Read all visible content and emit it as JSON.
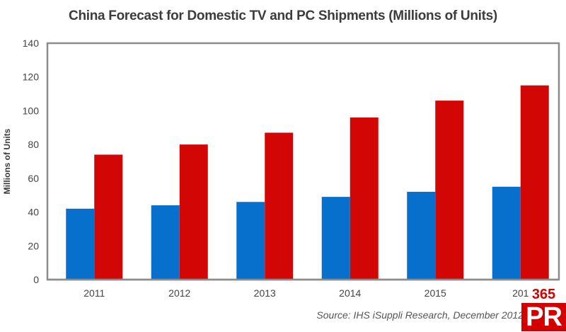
{
  "chart_data": {
    "type": "bar",
    "title": "China Forecast for Domestic TV and PC Shipments (Millions of Units)",
    "xlabel": "",
    "ylabel": "Millions of Units",
    "categories": [
      "2011",
      "2012",
      "2013",
      "2014",
      "2015",
      "201"
    ],
    "series": [
      {
        "name": "Series 1 (blue)",
        "color": "#0670cc",
        "values": [
          42,
          44,
          46,
          49,
          52,
          55
        ]
      },
      {
        "name": "Series 2 (red)",
        "color": "#d30606",
        "values": [
          74,
          80,
          87,
          96,
          106,
          115
        ]
      }
    ],
    "ylim": [
      0,
      140
    ],
    "yticks": [
      0,
      20,
      40,
      60,
      80,
      100,
      120,
      140
    ],
    "grid": false,
    "legend": "none",
    "source": "Source: IHS iSuppli Research, December 2012"
  },
  "logo": {
    "number": "365",
    "letters": "PR"
  }
}
